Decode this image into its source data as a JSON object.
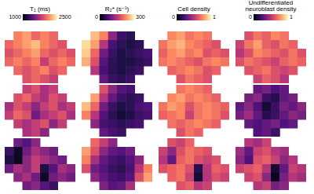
{
  "chart_data": [
    {
      "type": "heatmap",
      "title": "T₁ (ms)",
      "colorbar_range": [
        1000,
        2500
      ],
      "colorbar_ticks": [
        1000,
        2500
      ],
      "tick_labels": false,
      "cells": [
        [
          [
            null,
            2100,
            2200,
            2000,
            2100,
            2000,
            null,
            null
          ],
          [
            2000,
            2100,
            2200,
            2300,
            2100,
            2000,
            1900,
            null
          ],
          [
            1900,
            2000,
            2100,
            2200,
            2000,
            1900,
            2000,
            1900
          ],
          [
            2000,
            2100,
            2000,
            2100,
            1800,
            2000,
            2100,
            2000
          ],
          [
            null,
            2000,
            1900,
            2000,
            2100,
            1900,
            2000,
            null
          ],
          [
            null,
            null,
            1900,
            2000,
            1900,
            1800,
            null,
            null
          ]
        ],
        [
          [
            null,
            null,
            1800,
            1900,
            1700,
            1800,
            null,
            null
          ],
          [
            null,
            1900,
            2000,
            1800,
            1700,
            1900,
            1800,
            null
          ],
          [
            1700,
            1900,
            1800,
            1600,
            1800,
            1900,
            1700,
            1800
          ],
          [
            1800,
            2000,
            1900,
            1500,
            1700,
            1800,
            1900,
            1700
          ],
          [
            null,
            1800,
            1700,
            1800,
            1900,
            1600,
            1800,
            null
          ],
          [
            null,
            null,
            1700,
            1800,
            1600,
            null,
            null,
            null
          ]
        ],
        [
          [
            null,
            1500,
            1400,
            1600,
            null,
            null,
            null,
            null
          ],
          [
            1300,
            1100,
            1500,
            1700,
            1600,
            1500,
            null,
            null
          ],
          [
            1200,
            1100,
            1600,
            1800,
            1700,
            1600,
            1500,
            null
          ],
          [
            1500,
            1700,
            1600,
            1800,
            1200,
            1400,
            1700,
            1600
          ],
          [
            null,
            1600,
            1700,
            1500,
            1100,
            1500,
            1600,
            1500
          ],
          [
            null,
            null,
            1500,
            1600,
            1400,
            1300,
            null,
            null
          ]
        ]
      ]
    },
    {
      "type": "heatmap",
      "title": "R₂* (s⁻¹)",
      "colorbar_range": [
        0,
        300
      ],
      "colorbar_ticks": [
        0,
        300
      ],
      "tick_labels": false,
      "cells": [
        [
          [
            null,
            260,
            220,
            120,
            60,
            50,
            null,
            null
          ],
          [
            280,
            240,
            150,
            70,
            50,
            40,
            50,
            null
          ],
          [
            270,
            200,
            100,
            60,
            40,
            50,
            60,
            70
          ],
          [
            250,
            180,
            80,
            50,
            40,
            40,
            50,
            60
          ],
          [
            null,
            150,
            70,
            50,
            40,
            50,
            60,
            null
          ],
          [
            null,
            null,
            90,
            60,
            50,
            60,
            null,
            null
          ]
        ],
        [
          [
            null,
            null,
            180,
            120,
            80,
            70,
            null,
            null
          ],
          [
            null,
            240,
            150,
            90,
            60,
            50,
            60,
            null
          ],
          [
            260,
            200,
            100,
            60,
            40,
            50,
            70,
            80
          ],
          [
            220,
            150,
            80,
            50,
            30,
            40,
            60,
            70
          ],
          [
            null,
            120,
            70,
            60,
            50,
            60,
            70,
            null
          ],
          [
            null,
            null,
            90,
            70,
            60,
            null,
            null,
            null
          ]
        ],
        [
          [
            null,
            200,
            160,
            120,
            null,
            null,
            null,
            null
          ],
          [
            240,
            180,
            120,
            90,
            80,
            100,
            null,
            null
          ],
          [
            220,
            140,
            90,
            70,
            60,
            80,
            120,
            null
          ],
          [
            180,
            100,
            80,
            60,
            50,
            70,
            150,
            220
          ],
          [
            null,
            120,
            90,
            70,
            60,
            80,
            180,
            240
          ],
          [
            null,
            null,
            110,
            80,
            90,
            140,
            null,
            null
          ]
        ]
      ]
    },
    {
      "type": "heatmap",
      "title": "Cell density",
      "colorbar_range": [
        0,
        1
      ],
      "colorbar_ticks": [
        0,
        1
      ],
      "tick_labels": false,
      "cells": [
        [
          [
            null,
            0.75,
            0.8,
            0.7,
            0.75,
            0.7,
            null,
            null
          ],
          [
            0.7,
            0.8,
            0.85,
            0.75,
            0.7,
            0.65,
            0.6,
            null
          ],
          [
            0.65,
            0.75,
            0.8,
            0.7,
            0.75,
            0.6,
            0.65,
            0.6
          ],
          [
            0.7,
            0.75,
            0.7,
            0.65,
            0.6,
            0.7,
            0.75,
            0.7
          ],
          [
            null,
            0.65,
            0.7,
            0.75,
            0.7,
            0.6,
            0.65,
            null
          ],
          [
            null,
            null,
            0.6,
            0.7,
            0.65,
            0.6,
            null,
            null
          ]
        ],
        [
          [
            null,
            null,
            0.7,
            0.75,
            0.7,
            0.65,
            null,
            null
          ],
          [
            null,
            0.75,
            0.8,
            0.7,
            0.75,
            0.7,
            0.65,
            null
          ],
          [
            0.7,
            0.8,
            0.75,
            0.6,
            0.7,
            0.75,
            0.7,
            0.65
          ],
          [
            0.65,
            0.7,
            0.75,
            0.55,
            0.7,
            0.75,
            0.7,
            0.6
          ],
          [
            null,
            0.7,
            0.65,
            0.7,
            0.75,
            0.7,
            0.65,
            null
          ],
          [
            null,
            null,
            0.6,
            0.7,
            0.65,
            null,
            null,
            null
          ]
        ],
        [
          [
            null,
            0.6,
            0.55,
            0.65,
            null,
            null,
            null,
            null
          ],
          [
            0.55,
            0.4,
            0.6,
            0.7,
            0.65,
            0.6,
            null,
            null
          ],
          [
            0.5,
            0.3,
            0.65,
            0.7,
            0.6,
            0.55,
            0.6,
            null
          ],
          [
            0.6,
            0.65,
            0.7,
            0.6,
            0.15,
            0.5,
            0.65,
            0.6
          ],
          [
            null,
            0.65,
            0.7,
            0.55,
            0.1,
            0.5,
            0.6,
            0.55
          ],
          [
            null,
            null,
            0.6,
            0.65,
            0.5,
            0.55,
            null,
            null
          ]
        ]
      ]
    },
    {
      "type": "heatmap",
      "title": "Undifferentiated neuroblast density",
      "colorbar_range": [
        0,
        1
      ],
      "colorbar_ticks": [
        0,
        1
      ],
      "tick_labels": false,
      "cells": [
        [
          [
            null,
            0.6,
            0.7,
            0.65,
            0.75,
            0.7,
            null,
            null
          ],
          [
            0.55,
            0.7,
            0.8,
            0.65,
            0.6,
            0.7,
            0.65,
            null
          ],
          [
            0.5,
            0.6,
            0.75,
            0.7,
            0.65,
            0.6,
            0.7,
            0.6
          ],
          [
            0.6,
            0.7,
            0.65,
            0.6,
            0.55,
            0.65,
            0.7,
            0.65
          ],
          [
            null,
            0.6,
            0.65,
            0.7,
            0.6,
            0.55,
            0.6,
            null
          ],
          [
            null,
            null,
            0.55,
            0.65,
            0.6,
            0.5,
            null,
            null
          ]
        ],
        [
          [
            null,
            null,
            0.3,
            0.35,
            0.25,
            0.3,
            null,
            null
          ],
          [
            null,
            0.35,
            0.4,
            0.2,
            0.15,
            0.3,
            0.35,
            null
          ],
          [
            0.3,
            0.4,
            0.25,
            0.1,
            0.2,
            0.35,
            0.3,
            0.4
          ],
          [
            0.35,
            0.45,
            0.3,
            0.15,
            0.2,
            0.3,
            0.4,
            0.35
          ],
          [
            null,
            0.3,
            0.25,
            0.3,
            0.35,
            0.25,
            0.3,
            null
          ],
          [
            null,
            null,
            0.25,
            0.3,
            0.2,
            null,
            null,
            null
          ]
        ],
        [
          [
            null,
            0.5,
            0.45,
            0.55,
            null,
            null,
            null,
            null
          ],
          [
            0.45,
            0.3,
            0.55,
            0.6,
            0.5,
            0.45,
            null,
            null
          ],
          [
            0.4,
            0.25,
            0.6,
            0.65,
            0.55,
            0.4,
            0.5,
            null
          ],
          [
            0.55,
            0.6,
            0.65,
            0.5,
            0.1,
            0.3,
            0.55,
            0.5
          ],
          [
            null,
            0.55,
            0.6,
            0.4,
            0.05,
            0.35,
            0.5,
            0.45
          ],
          [
            null,
            null,
            0.5,
            0.55,
            0.35,
            0.4,
            null,
            null
          ]
        ]
      ]
    }
  ]
}
